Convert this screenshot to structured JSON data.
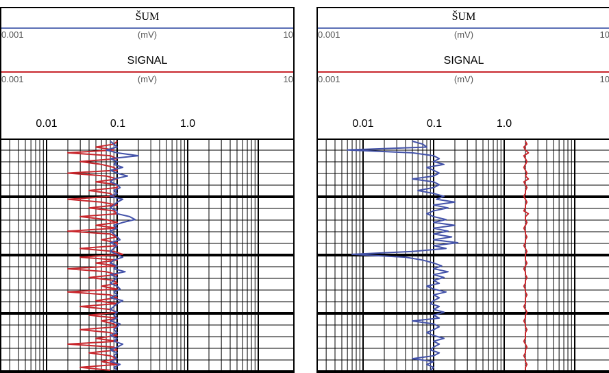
{
  "chart_data": [
    {
      "type": "line",
      "header": {
        "noise_title": "ŠUM",
        "noise_scale": {
          "min": "0.001",
          "unit": "(mV)",
          "max": "10"
        },
        "signal_title": "SIGNAL",
        "signal_scale": {
          "min": "0.001",
          "unit": "(mV)",
          "max": "10"
        }
      },
      "x_tick_labels": [
        "0.01",
        "0.1",
        "1.0"
      ],
      "x_scale": "log",
      "xlim": [
        0.001,
        10
      ],
      "grid": true,
      "series": [
        {
          "color": "#c8262c",
          "values": [
            0.1,
            0.09,
            0.05,
            0.09,
            0.02,
            0.08,
            0.1,
            0.03,
            0.06,
            0.09,
            0.1,
            0.02,
            0.07,
            0.1,
            0.05,
            0.1,
            0.1,
            0.04,
            0.08,
            0.09,
            0.02,
            0.06,
            0.1,
            0.04,
            0.09,
            0.1,
            0.03,
            0.07,
            0.1,
            0.05,
            0.1,
            0.02,
            0.08,
            0.1,
            0.06,
            0.1,
            0.1,
            0.03,
            0.09,
            0.12,
            0.03,
            0.1,
            0.05,
            0.1,
            0.02,
            0.07,
            0.1,
            0.04,
            0.09,
            0.1,
            0.06,
            0.1,
            0.02,
            0.08,
            0.1,
            0.05,
            0.1,
            0.03,
            0.08,
            0.1,
            0.04,
            0.1,
            0.06,
            0.09,
            0.1,
            0.03,
            0.08,
            0.1,
            0.05,
            0.1,
            0.02,
            0.09,
            0.1,
            0.04,
            0.08,
            0.1,
            0.06,
            0.1,
            0.03,
            0.08
          ]
        },
        {
          "color": "#4352a9",
          "values": [
            0.08,
            0.09,
            0.1,
            0.07,
            0.1,
            0.2,
            0.08,
            0.1,
            0.09,
            0.12,
            0.08,
            0.1,
            0.14,
            0.09,
            0.08,
            0.1,
            0.11,
            0.09,
            0.1,
            0.08,
            0.12,
            0.1,
            0.09,
            0.08,
            0.1,
            0.1,
            0.15,
            0.18,
            0.12,
            0.09,
            0.1,
            0.08,
            0.09,
            0.1,
            0.11,
            0.08,
            0.1,
            0.09,
            0.08,
            0.1,
            0.12,
            0.09,
            0.08,
            0.1,
            0.09,
            0.13,
            0.08,
            0.1,
            0.09,
            0.08,
            0.1,
            0.11,
            0.09,
            0.1,
            0.08,
            0.12,
            0.1,
            0.09,
            0.08,
            0.1,
            0.09,
            0.1,
            0.08,
            0.11,
            0.1,
            0.09,
            0.1,
            0.08,
            0.1,
            0.09,
            0.12,
            0.1,
            0.08,
            0.1,
            0.09,
            0.1,
            0.08,
            0.11,
            0.09,
            0.1
          ]
        }
      ]
    },
    {
      "type": "line",
      "header": {
        "noise_title": "ŠUM",
        "noise_scale": {
          "min": "0.001",
          "unit": "(mV)",
          "max": "10"
        },
        "signal_title": "SIGNAL",
        "signal_scale": {
          "min": "0.001",
          "unit": "(mV)",
          "max": "10"
        }
      },
      "x_tick_labels": [
        "0.01",
        "0.1",
        "1.0"
      ],
      "x_scale": "log",
      "xlim": [
        0.001,
        10
      ],
      "grid": true,
      "series": [
        {
          "color": "#4352a9",
          "values": [
            0.05,
            0.07,
            0.08,
            0.006,
            0.05,
            0.1,
            0.12,
            0.1,
            0.14,
            0.08,
            0.1,
            0.12,
            0.1,
            0.05,
            0.1,
            0.12,
            0.1,
            0.06,
            0.1,
            0.14,
            0.11,
            0.2,
            0.1,
            0.16,
            0.1,
            0.08,
            0.1,
            0.15,
            0.1,
            0.2,
            0.1,
            0.16,
            0.1,
            0.18,
            0.1,
            0.22,
            0.1,
            0.15,
            0.05,
            0.007,
            0.04,
            0.07,
            0.1,
            0.13,
            0.1,
            0.16,
            0.1,
            0.14,
            0.1,
            0.12,
            0.08,
            0.1,
            0.15,
            0.1,
            0.12,
            0.1,
            0.09,
            0.12,
            0.1,
            0.14,
            0.1,
            0.12,
            0.05,
            0.1,
            0.12,
            0.1,
            0.08,
            0.1,
            0.14,
            0.1,
            0.12,
            0.1,
            0.09,
            0.12,
            0.1,
            0.05,
            0.1,
            0.08,
            0.1,
            0.09
          ]
        },
        {
          "color": "#c8262c",
          "values": [
            2.0,
            2.1,
            1.9,
            2.0,
            2.2,
            1.9,
            2.0,
            2.1,
            2.0,
            1.9,
            2.0,
            2.1,
            2.0,
            2.2,
            1.9,
            2.0,
            2.1,
            2.0,
            2.0,
            1.9,
            2.0,
            2.1,
            2.0,
            2.0,
            1.9,
            2.2,
            2.0,
            2.0,
            2.1,
            2.0,
            1.9,
            2.0,
            2.0,
            2.1,
            2.0,
            2.0,
            1.9,
            2.0,
            2.1,
            2.0,
            2.0,
            2.0,
            2.1,
            2.0,
            1.9,
            2.0,
            2.0,
            2.1,
            2.0,
            2.0,
            1.9,
            2.0,
            2.0,
            2.1,
            2.0,
            2.0,
            2.0,
            1.9,
            2.0,
            2.1,
            2.0,
            2.0,
            1.9,
            2.0,
            2.0,
            2.1,
            2.0,
            2.0,
            2.0,
            1.9,
            2.0,
            2.1,
            2.0,
            2.0,
            1.9,
            2.0,
            2.0,
            2.1,
            2.0,
            2.0
          ]
        }
      ]
    }
  ]
}
